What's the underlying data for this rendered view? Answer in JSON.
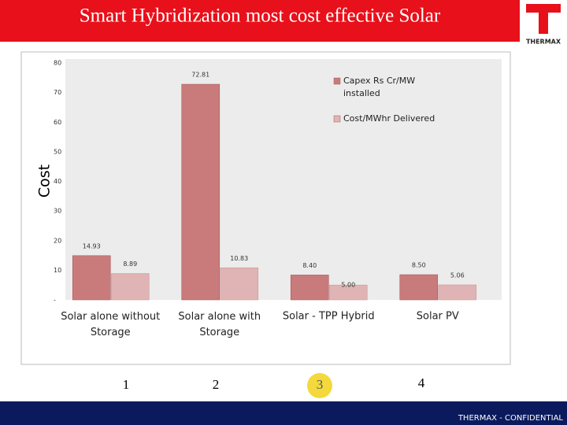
{
  "header": {
    "title": "Smart Hybridization most cost effective Solar",
    "logo": "THERMAX"
  },
  "chart_data": {
    "type": "bar",
    "y_label": "Cost",
    "categories": [
      "Solar alone without Storage",
      "Solar alone with Storage",
      "Solar - TPP Hybrid",
      "Solar PV"
    ],
    "series": [
      {
        "name": "Capex Rs Cr/MW installed",
        "color": "#c97b7b",
        "values": [
          14.93,
          72.81,
          8.4,
          8.5
        ],
        "value_labels": [
          "14.93",
          "72.81",
          "8.40",
          "8.50"
        ]
      },
      {
        "name": "Cost/MWhr Delivered",
        "color": "#e0b4b4",
        "values": [
          8.89,
          10.83,
          5.0,
          5.06
        ],
        "value_labels": [
          "8.89",
          "10.83",
          "5.00",
          "5.06"
        ]
      }
    ],
    "ylim": [
      0,
      80
    ],
    "yticks": [
      {
        "value": 0,
        "label": "-"
      },
      10,
      20,
      30,
      40,
      50,
      60,
      70,
      80
    ],
    "legend": "top-right"
  },
  "markers": [
    "1",
    "2",
    "3",
    "4"
  ],
  "footer": "THERMAX - CONFIDENTIAL"
}
